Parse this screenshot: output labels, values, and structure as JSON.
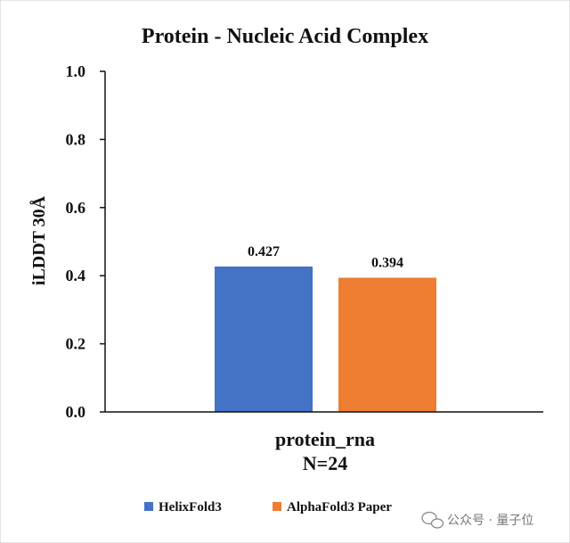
{
  "chart_data": {
    "type": "bar",
    "title": "Protein - Nucleic Acid Complex",
    "ylabel": "iLDDT 30Å",
    "xlabel": "",
    "ylim": [
      0,
      1.0
    ],
    "yticks": [
      "0.0",
      "0.2",
      "0.4",
      "0.6",
      "0.8",
      "1.0"
    ],
    "categories": [
      "protein_rna"
    ],
    "category_sublabel": "N=24",
    "series": [
      {
        "name": "HelixFold3",
        "values": [
          0.427
        ],
        "label": "0.427",
        "color": "#4472c4"
      },
      {
        "name": "AlphaFold3 Paper",
        "values": [
          0.394
        ],
        "label": "0.394",
        "color": "#ed7d31"
      }
    ],
    "legend_position": "bottom",
    "grid": false
  },
  "watermark": {
    "text": "公众号 · 量子位",
    "icon": "wechat-icon"
  }
}
